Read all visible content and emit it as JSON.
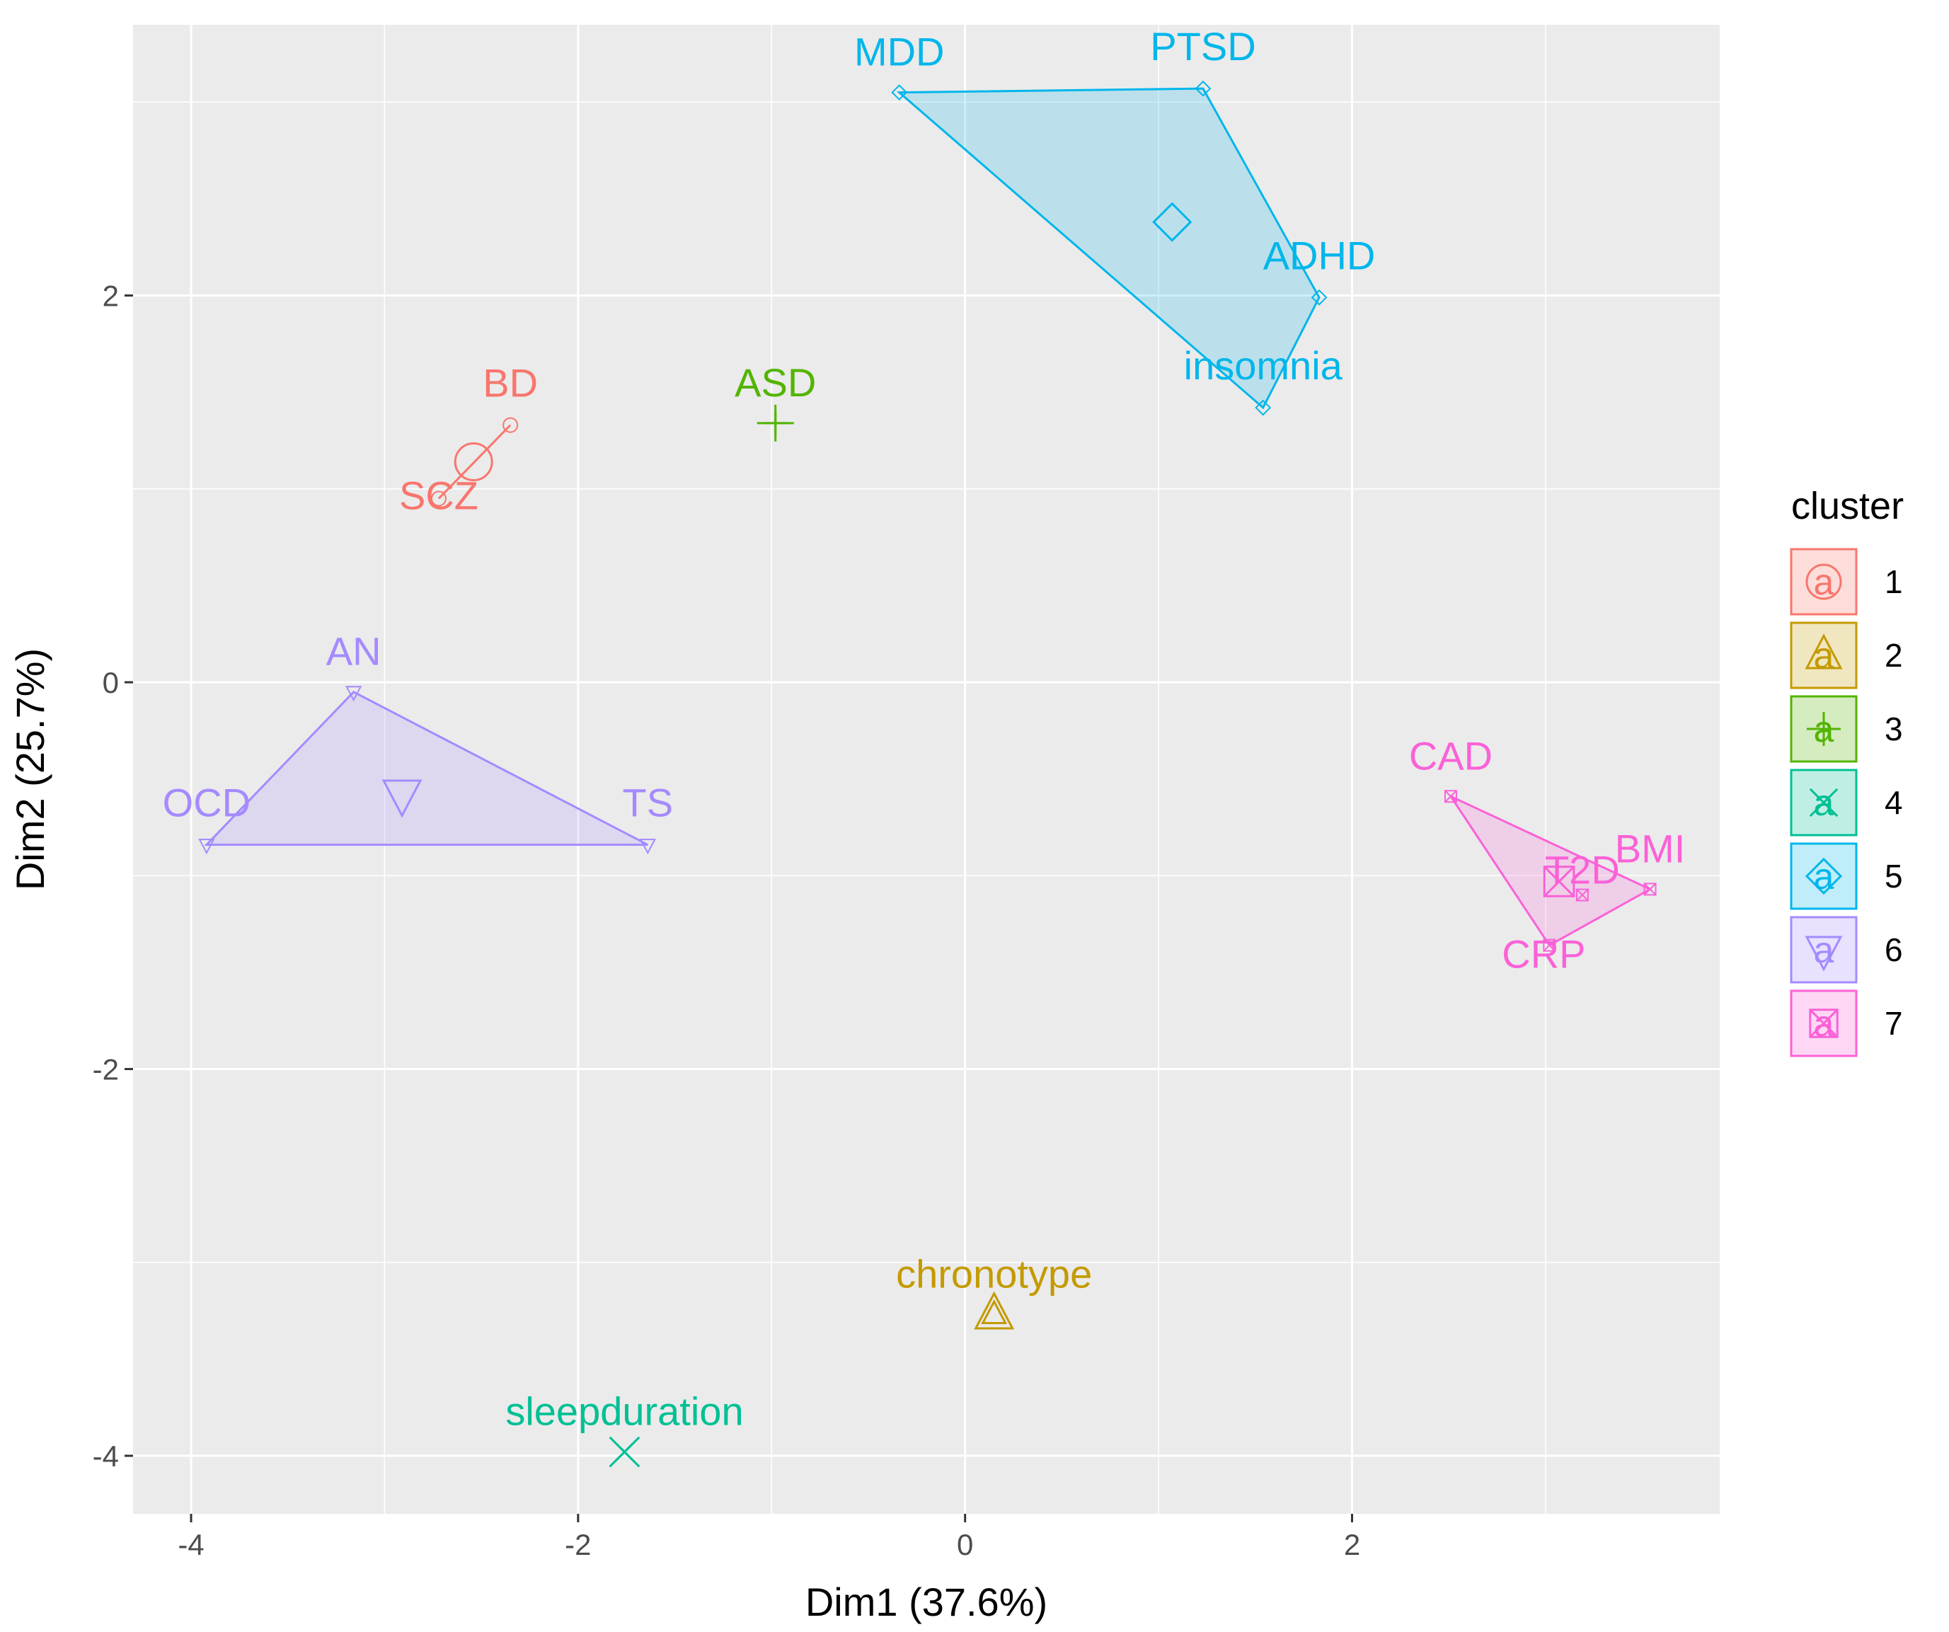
{
  "chart_data": {
    "type": "scatter",
    "xlabel": "Dim1 (37.6%)",
    "ylabel": "Dim2 (25.7%)",
    "xlim": [
      -4.3,
      3.9
    ],
    "ylim": [
      -4.3,
      3.4
    ],
    "xticks": [
      -4,
      -2,
      0,
      2
    ],
    "yticks": [
      -4,
      -2,
      0,
      2
    ],
    "xtick_labels": [
      "-4",
      "-2",
      "0",
      "2"
    ],
    "ytick_labels": [
      "-4",
      "-2",
      "0",
      "2"
    ],
    "grid": true,
    "legend": {
      "title": "cluster",
      "position": "right",
      "entries": [
        {
          "label": "1",
          "cluster": 1
        },
        {
          "label": "2",
          "cluster": 2
        },
        {
          "label": "3",
          "cluster": 3
        },
        {
          "label": "4",
          "cluster": 4
        },
        {
          "label": "5",
          "cluster": 5
        },
        {
          "label": "6",
          "cluster": 6
        },
        {
          "label": "7",
          "cluster": 7
        }
      ],
      "key_letter": "a"
    },
    "clusters": [
      {
        "id": 1,
        "color": "#F8766D",
        "shape": "circle",
        "points": [
          {
            "label": "BD",
            "x": -2.35,
            "y": 1.33
          },
          {
            "label": "SCZ",
            "x": -2.72,
            "y": 0.95
          }
        ],
        "centroid": {
          "x": -2.54,
          "y": 1.14
        }
      },
      {
        "id": 2,
        "color": "#C49A00",
        "shape": "triangle",
        "points": [
          {
            "label": "chronotype",
            "x": 0.15,
            "y": -3.27
          }
        ],
        "centroid": {
          "x": 0.15,
          "y": -3.27
        }
      },
      {
        "id": 3,
        "color": "#53B400",
        "shape": "plus",
        "points": [
          {
            "label": "ASD",
            "x": -0.98,
            "y": 1.34
          }
        ],
        "centroid": {
          "x": -0.98,
          "y": 1.34
        }
      },
      {
        "id": 4,
        "color": "#00C094",
        "shape": "cross",
        "points": [
          {
            "label": "sleepduration",
            "x": -1.76,
            "y": -3.98
          }
        ],
        "centroid": {
          "x": -1.76,
          "y": -3.98
        }
      },
      {
        "id": 5,
        "color": "#00B6EB",
        "shape": "diamond",
        "points": [
          {
            "label": "MDD",
            "x": -0.34,
            "y": 3.05
          },
          {
            "label": "PTSD",
            "x": 1.23,
            "y": 3.07
          },
          {
            "label": "ADHD",
            "x": 1.83,
            "y": 1.99
          },
          {
            "label": "insomnia",
            "x": 1.54,
            "y": 1.42
          }
        ],
        "centroid": {
          "x": 1.07,
          "y": 2.38
        }
      },
      {
        "id": 6,
        "color": "#A58AFF",
        "shape": "triangle-down",
        "points": [
          {
            "label": "AN",
            "x": -3.16,
            "y": -0.05
          },
          {
            "label": "OCD",
            "x": -3.92,
            "y": -0.84
          },
          {
            "label": "TS",
            "x": -1.64,
            "y": -0.84
          }
        ],
        "centroid": {
          "x": -2.91,
          "y": -0.58
        }
      },
      {
        "id": 7,
        "color": "#FB61D7",
        "shape": "square-x",
        "points": [
          {
            "label": "CAD",
            "x": 2.51,
            "y": -0.59
          },
          {
            "label": "BMI",
            "x": 3.54,
            "y": -1.07
          },
          {
            "label": "T2D",
            "x": 3.19,
            "y": -1.1
          },
          {
            "label": "CRP",
            "x": 3.02,
            "y": -1.36
          }
        ],
        "centroid": {
          "x": 3.07,
          "y": -1.03
        }
      }
    ]
  }
}
